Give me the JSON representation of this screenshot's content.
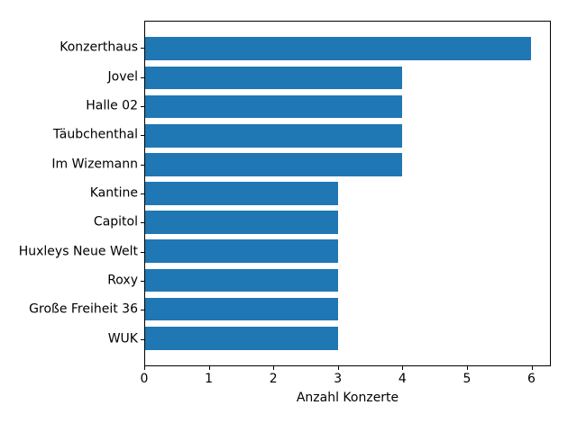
{
  "chart_data": {
    "type": "bar",
    "orientation": "horizontal",
    "title": "",
    "xlabel": "Anzahl Konzerte",
    "ylabel": "",
    "categories": [
      "Konzerthaus",
      "Jovel",
      "Halle 02",
      "Täubchenthal",
      "Im Wizemann",
      "Kantine",
      "Capitol",
      "Huxleys Neue Welt",
      "Roxy",
      "Große Freiheit 36",
      "WUK"
    ],
    "values": [
      6,
      4,
      4,
      4,
      4,
      3,
      3,
      3,
      3,
      3,
      3
    ],
    "xticks": [
      0,
      1,
      2,
      3,
      4,
      5,
      6
    ],
    "xlim": [
      0,
      6.3
    ],
    "bar_color": "#1f77b4",
    "axis_color": "#000000",
    "background_color": "#ffffff",
    "grid": false,
    "legend": null
  }
}
